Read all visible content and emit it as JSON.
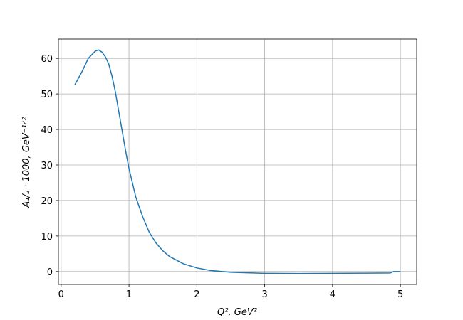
{
  "chart_data": {
    "type": "line",
    "xlabel": "Q², GeV²",
    "ylabel": "A₁/₂ · 1000, GeV⁻¹ᐟ²",
    "x": [
      0.2,
      0.3,
      0.4,
      0.5,
      0.55,
      0.6,
      0.65,
      0.7,
      0.75,
      0.8,
      0.85,
      0.9,
      0.95,
      1.0,
      1.1,
      1.2,
      1.3,
      1.4,
      1.5,
      1.6,
      1.8,
      2.0,
      2.2,
      2.5,
      3.0,
      3.5,
      4.0,
      4.5,
      4.85,
      4.9,
      5.0
    ],
    "series": [
      {
        "color": "#1f77b4",
        "values": [
          52.5,
          56,
          60,
          62,
          62.4,
          61.8,
          60.5,
          58.5,
          55,
          50.5,
          45,
          39.5,
          34,
          29,
          21,
          15.5,
          11,
          8,
          5.8,
          4.2,
          2.2,
          1.0,
          0.3,
          -0.2,
          -0.5,
          -0.55,
          -0.5,
          -0.45,
          -0.4,
          0,
          0
        ]
      }
    ],
    "xlim": [
      -0.04,
      5.24
    ],
    "ylim": [
      -3.64,
      65.44
    ],
    "xticks": [
      0,
      1,
      2,
      3,
      4,
      5
    ],
    "yticks": [
      0,
      10,
      20,
      30,
      40,
      50,
      60
    ],
    "grid": true
  }
}
